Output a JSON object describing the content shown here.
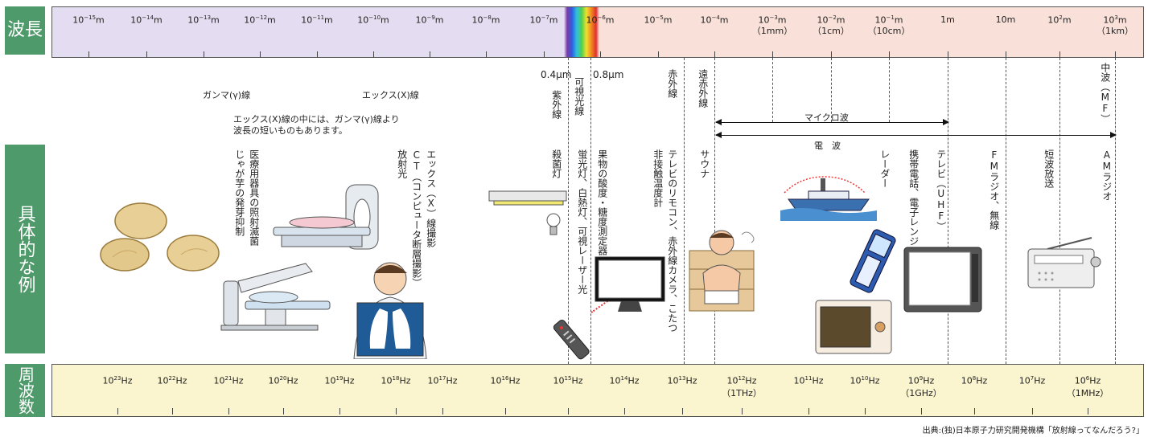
{
  "side_labels": {
    "wavelength": "波長",
    "examples": "具体的な例",
    "frequency": "周波数"
  },
  "wavelength_ticks": [
    {
      "base": "10",
      "exp": "−15",
      "unit": "m",
      "sub": ""
    },
    {
      "base": "10",
      "exp": "−14",
      "unit": "m",
      "sub": ""
    },
    {
      "base": "10",
      "exp": "−13",
      "unit": "m",
      "sub": ""
    },
    {
      "base": "10",
      "exp": "−12",
      "unit": "m",
      "sub": ""
    },
    {
      "base": "10",
      "exp": "−11",
      "unit": "m",
      "sub": ""
    },
    {
      "base": "10",
      "exp": "−10",
      "unit": "m",
      "sub": ""
    },
    {
      "base": "10",
      "exp": "−9",
      "unit": "m",
      "sub": ""
    },
    {
      "base": "10",
      "exp": "−8",
      "unit": "m",
      "sub": ""
    },
    {
      "base": "10",
      "exp": "−7",
      "unit": "m",
      "sub": ""
    },
    {
      "base": "10",
      "exp": "−6",
      "unit": "m",
      "sub": ""
    },
    {
      "base": "10",
      "exp": "−5",
      "unit": "m",
      "sub": ""
    },
    {
      "base": "10",
      "exp": "−4",
      "unit": "m",
      "sub": ""
    },
    {
      "base": "10",
      "exp": "−3",
      "unit": "m",
      "sub": "（1mm）"
    },
    {
      "base": "10",
      "exp": "−2",
      "unit": "m",
      "sub": "（1cm）"
    },
    {
      "base": "10",
      "exp": "−1",
      "unit": "m",
      "sub": "（10cm）"
    },
    {
      "base": "",
      "exp": "",
      "unit": "1m",
      "sub": ""
    },
    {
      "base": "",
      "exp": "",
      "unit": "10m",
      "sub": ""
    },
    {
      "base": "10",
      "exp": "2",
      "unit": "m",
      "sub": ""
    },
    {
      "base": "10",
      "exp": "3",
      "unit": "m",
      "sub": "（1km）"
    }
  ],
  "frequency_ticks": [
    {
      "exp": "23",
      "sub": ""
    },
    {
      "exp": "22",
      "sub": ""
    },
    {
      "exp": "21",
      "sub": ""
    },
    {
      "exp": "20",
      "sub": ""
    },
    {
      "exp": "19",
      "sub": ""
    },
    {
      "exp": "18",
      "sub": ""
    },
    {
      "exp": "17",
      "sub": ""
    },
    {
      "exp": "16",
      "sub": ""
    },
    {
      "exp": "15",
      "sub": ""
    },
    {
      "exp": "14",
      "sub": ""
    },
    {
      "exp": "13",
      "sub": ""
    },
    {
      "exp": "12",
      "sub": "（1THz）"
    },
    {
      "exp": "11",
      "sub": ""
    },
    {
      "exp": "10",
      "sub": ""
    },
    {
      "exp": "9",
      "sub": "（1GHz）"
    },
    {
      "exp": "8",
      "sub": ""
    },
    {
      "exp": "7",
      "sub": ""
    },
    {
      "exp": "6",
      "sub": "（1MHz）"
    }
  ],
  "hz_unit": "Hz",
  "markers": {
    "uv_edge": "0.4μm",
    "ir_edge": "0.8μm"
  },
  "bands": {
    "gamma": "ガンマ(γ)線",
    "xray": "エックス(X)線",
    "xray_note_1": "エックス(X)線の中には、ガンマ(γ)線より",
    "xray_note_2": "波長の短いものもあります。",
    "uv": "紫外線",
    "visible": "可視光線",
    "ir": "赤外線",
    "far_ir": "遠赤外線",
    "mw_radio": "中波（MF）",
    "microwave": "マイクロ波",
    "radio": "電　波"
  },
  "examples": {
    "potato": "じゃが芋の発芽抑制",
    "medical": "医療用器具の照射滅菌",
    "radiotherapy": "放射光",
    "ct": "CT（コンピュータ断層撮影）",
    "xray_photo": "エックス（X）線撮影",
    "sterilize": "殺菌灯",
    "lamps": "蛍光灯、白熱灯、可視レーザー光",
    "fruit": "果物の酸度・糖度測定器",
    "thermometer": "非接触温度計",
    "remote": "テレビのリモコン、赤外線カメラ、こたつ",
    "sauna": "サウナ",
    "radar": "レーダー",
    "mobile": "携帯電話、電子レンジ",
    "tv": "テレビ（UHF）",
    "fm": "FMラジオ、無線",
    "shortwave": "短波放送",
    "am": "AMラジオ"
  },
  "source": "出典:(独)日本原子力研究開発機構「放射線ってなんだろう?」",
  "colors": {
    "side": "#4f9a6a",
    "wave_left": "#e4dcf0",
    "wave_right": "#f9e0d8",
    "freq_bar": "#faf5cf"
  }
}
